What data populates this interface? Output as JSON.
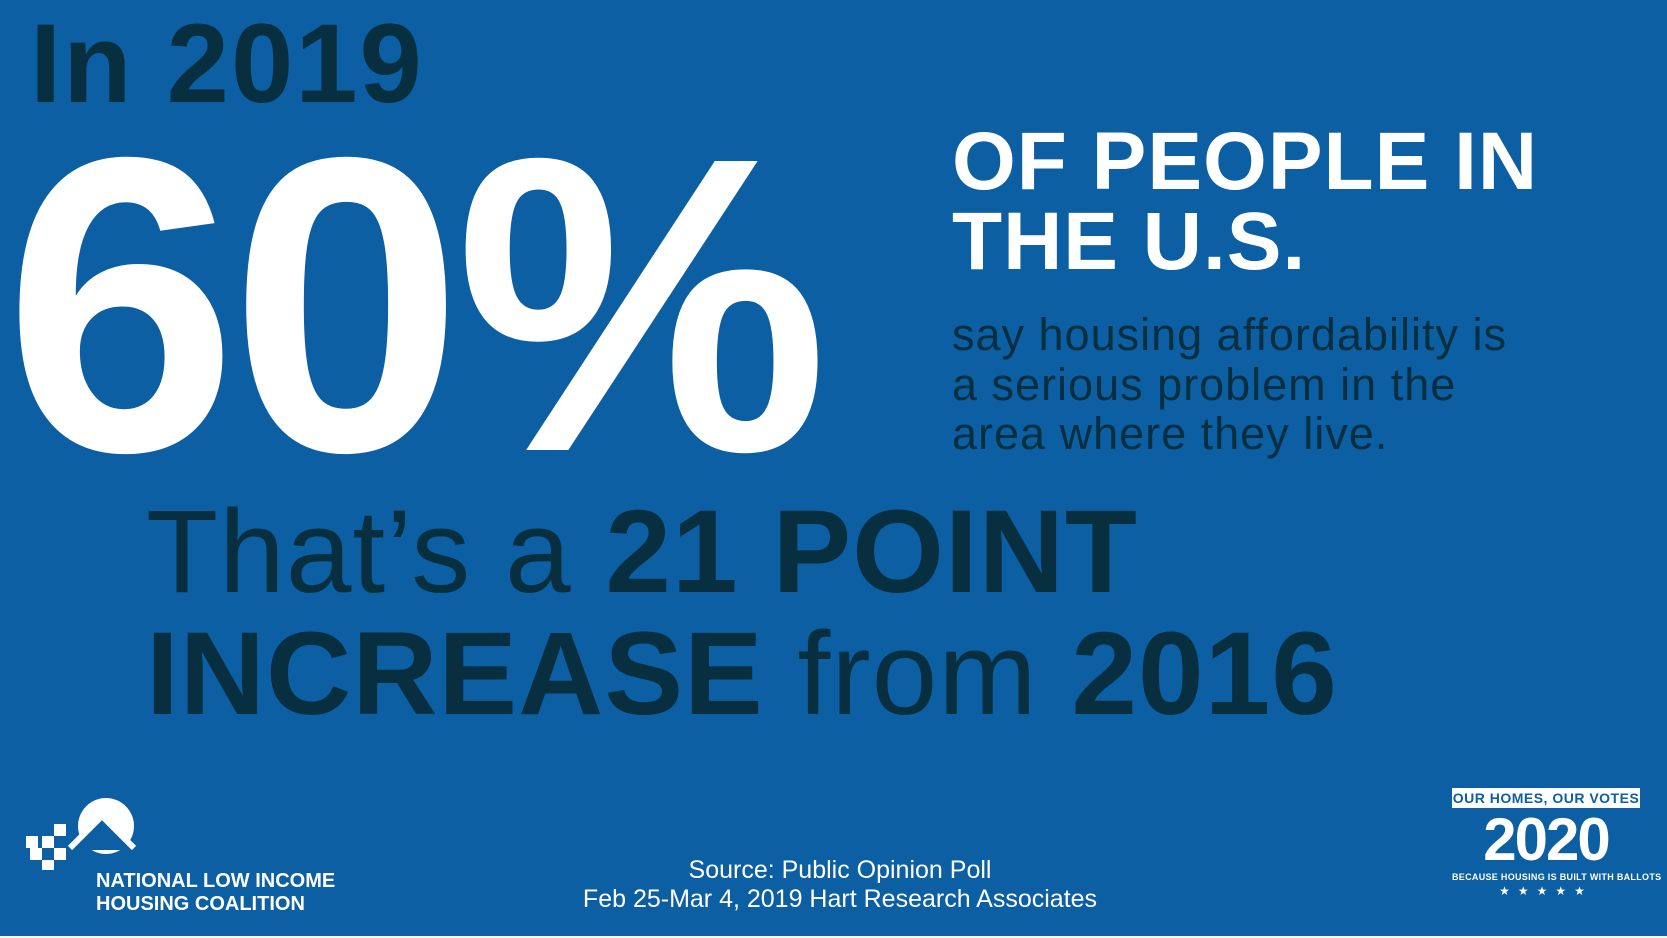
{
  "intro": "In 2019",
  "stat": "60%",
  "headline": {
    "line1": "OF PEOPLE IN",
    "line2": "THE U.S."
  },
  "description": {
    "line1": "say housing affordability is",
    "line2": "a serious problem in the",
    "line3": "area where they live."
  },
  "increase": {
    "part1": "That’s a ",
    "part2": "21 POINT",
    "part3": "INCREASE",
    "part4": " from ",
    "part5": "2016"
  },
  "logo": {
    "line1": "NATIONAL LOW INCOME",
    "line2": "HOUSING COALITION"
  },
  "source": {
    "line1": "Source: Public Opinion Poll",
    "line2": "Feb 25-Mar 4, 2019 Hart Research Associates"
  },
  "badge": {
    "top": "OUR HOMES, OUR VOTES",
    "year": "2020",
    "tagline": "BECAUSE HOUSING IS BUILT WITH BALLOTS",
    "stars": "★★★★★"
  },
  "colors": {
    "background": "#0b5fa2",
    "dark_text": "#072f3f",
    "light_text": "#ffffff"
  }
}
